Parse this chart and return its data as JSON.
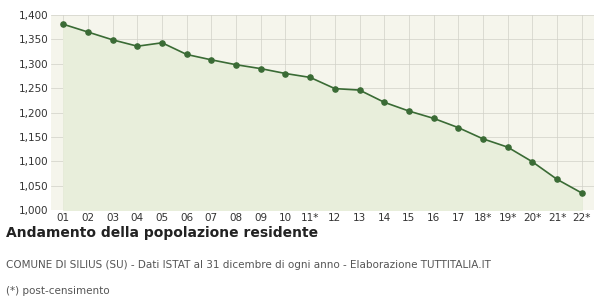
{
  "x_labels": [
    "01",
    "02",
    "03",
    "04",
    "05",
    "06",
    "07",
    "08",
    "09",
    "10",
    "11*",
    "12",
    "13",
    "14",
    "15",
    "16",
    "17",
    "18*",
    "19*",
    "20*",
    "21*",
    "22*"
  ],
  "values": [
    1381,
    1365,
    1349,
    1336,
    1343,
    1319,
    1308,
    1298,
    1290,
    1280,
    1272,
    1249,
    1246,
    1221,
    1203,
    1188,
    1169,
    1146,
    1129,
    1099,
    1063,
    1035
  ],
  "ylim": [
    1000,
    1400
  ],
  "yticks": [
    1000,
    1050,
    1100,
    1150,
    1200,
    1250,
    1300,
    1350,
    1400
  ],
  "line_color": "#3a6b35",
  "fill_color": "#e8eedb",
  "marker_color": "#3a6b35",
  "bg_color": "#f5f5ec",
  "grid_color": "#d0d0c8",
  "title": "Andamento della popolazione residente",
  "subtitle": "COMUNE DI SILIUS (SU) - Dati ISTAT al 31 dicembre di ogni anno - Elaborazione TUTTITALIA.IT",
  "footnote": "(*) post-censimento",
  "title_fontsize": 10,
  "subtitle_fontsize": 7.5,
  "footnote_fontsize": 7.5,
  "tick_fontsize": 7.5
}
